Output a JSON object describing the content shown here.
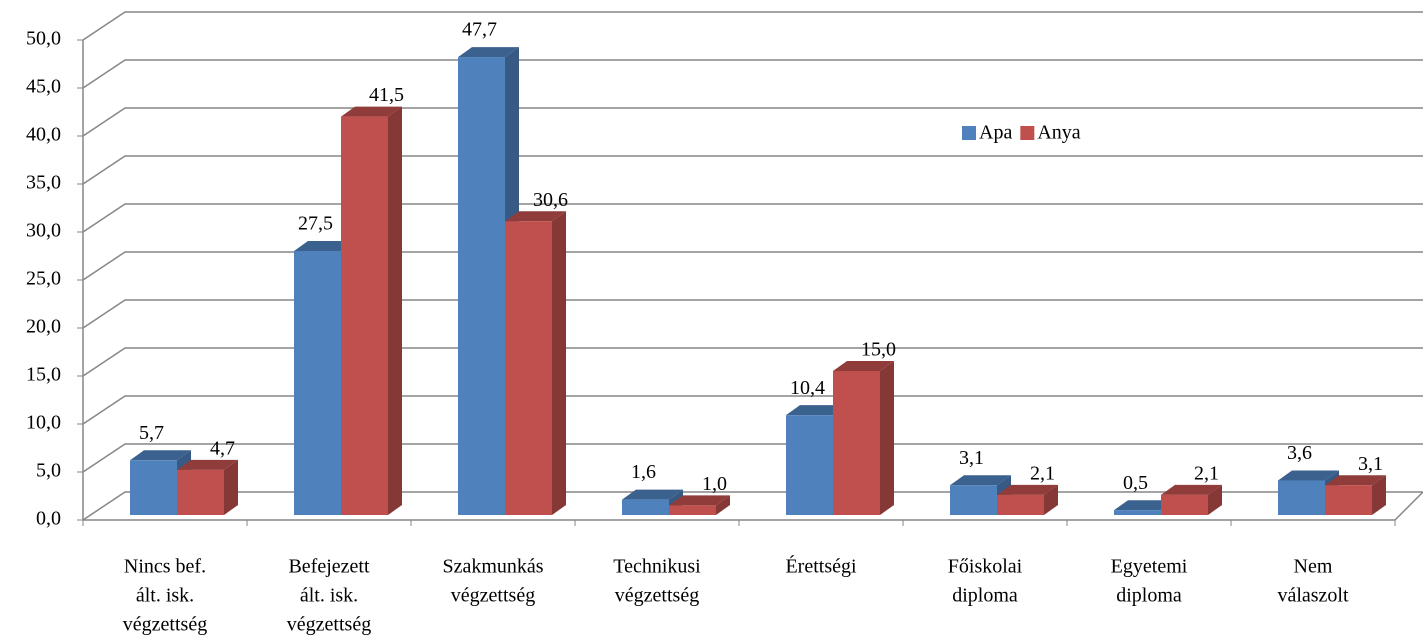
{
  "chart_data": {
    "type": "bar3d",
    "categories": [
      [
        "Nincs bef.",
        "ált. isk.",
        "végzettség"
      ],
      [
        "Befejezett",
        "ált. isk.",
        "végzettség"
      ],
      [
        "Szakmunkás",
        "végzettség"
      ],
      [
        "Technikusi",
        "végzettség"
      ],
      [
        "Érettségi"
      ],
      [
        "Főiskolai",
        "diploma"
      ],
      [
        "Egyetemi",
        "diploma"
      ],
      [
        "Nem",
        "válaszolt"
      ]
    ],
    "series": [
      {
        "name": "Apa",
        "color": "#4f81bd",
        "values": [
          5.7,
          27.5,
          47.7,
          1.6,
          10.4,
          3.1,
          0.5,
          3.6
        ],
        "value_labels": [
          "5,7",
          "27,5",
          "47,7",
          "1,6",
          "10,4",
          "3,1",
          "0,5",
          "3,6"
        ]
      },
      {
        "name": "Anya",
        "color": "#c0504d",
        "values": [
          4.7,
          41.5,
          30.6,
          1.0,
          15.0,
          2.1,
          2.1,
          3.1
        ],
        "value_labels": [
          "4,7",
          "41,5",
          "30,6",
          "1,0",
          "15,0",
          "2,1",
          "2,1",
          "3,1"
        ]
      }
    ],
    "ylim": [
      0,
      50
    ],
    "yticks": [
      {
        "value": 0,
        "label": "0,0"
      },
      {
        "value": 5,
        "label": "5,0"
      },
      {
        "value": 10,
        "label": "10,0"
      },
      {
        "value": 15,
        "label": "15,0"
      },
      {
        "value": 20,
        "label": "20,0"
      },
      {
        "value": 25,
        "label": "25,0"
      },
      {
        "value": 30,
        "label": "30,0"
      },
      {
        "value": 35,
        "label": "35,0"
      },
      {
        "value": 40,
        "label": "40,0"
      },
      {
        "value": 45,
        "label": "45,0"
      },
      {
        "value": 50,
        "label": "50,0"
      }
    ],
    "grid": true,
    "legend": "upper-right"
  }
}
